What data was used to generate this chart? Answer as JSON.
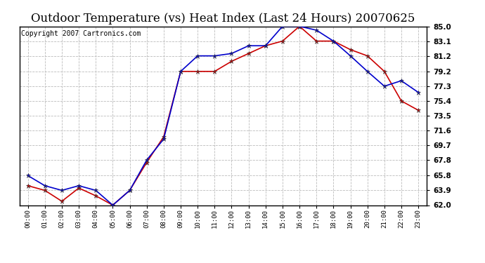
{
  "title": "Outdoor Temperature (vs) Heat Index (Last 24 Hours) 20070625",
  "copyright": "Copyright 2007 Cartronics.com",
  "hours": [
    "00:00",
    "01:00",
    "02:00",
    "03:00",
    "04:00",
    "05:00",
    "06:00",
    "07:00",
    "08:00",
    "09:00",
    "10:00",
    "11:00",
    "12:00",
    "13:00",
    "14:00",
    "15:00",
    "16:00",
    "17:00",
    "18:00",
    "19:00",
    "20:00",
    "21:00",
    "22:00",
    "23:00"
  ],
  "temp": [
    65.8,
    64.5,
    63.9,
    64.5,
    63.9,
    62.0,
    63.9,
    67.8,
    70.5,
    79.2,
    81.2,
    81.2,
    81.5,
    82.5,
    82.5,
    85.0,
    85.0,
    84.5,
    83.1,
    81.2,
    79.2,
    77.3,
    78.0,
    76.5
  ],
  "heat_index": [
    64.5,
    63.9,
    62.5,
    64.2,
    63.2,
    62.0,
    63.9,
    67.5,
    70.8,
    79.2,
    79.2,
    79.2,
    80.5,
    81.5,
    82.5,
    83.1,
    85.0,
    83.1,
    83.1,
    82.0,
    81.2,
    79.2,
    75.4,
    74.2
  ],
  "temp_color": "#0000cc",
  "heat_color": "#cc0000",
  "ylim_min": 62.0,
  "ylim_max": 85.0,
  "yticks": [
    62.0,
    63.9,
    65.8,
    67.8,
    69.7,
    71.6,
    73.5,
    75.4,
    77.3,
    79.2,
    81.2,
    83.1,
    85.0
  ],
  "background_color": "#ffffff",
  "plot_bg_color": "#ffffff",
  "grid_color": "#bbbbbb",
  "title_fontsize": 12,
  "copyright_fontsize": 7,
  "tick_fontsize": 7.5,
  "xtick_fontsize": 6.5
}
